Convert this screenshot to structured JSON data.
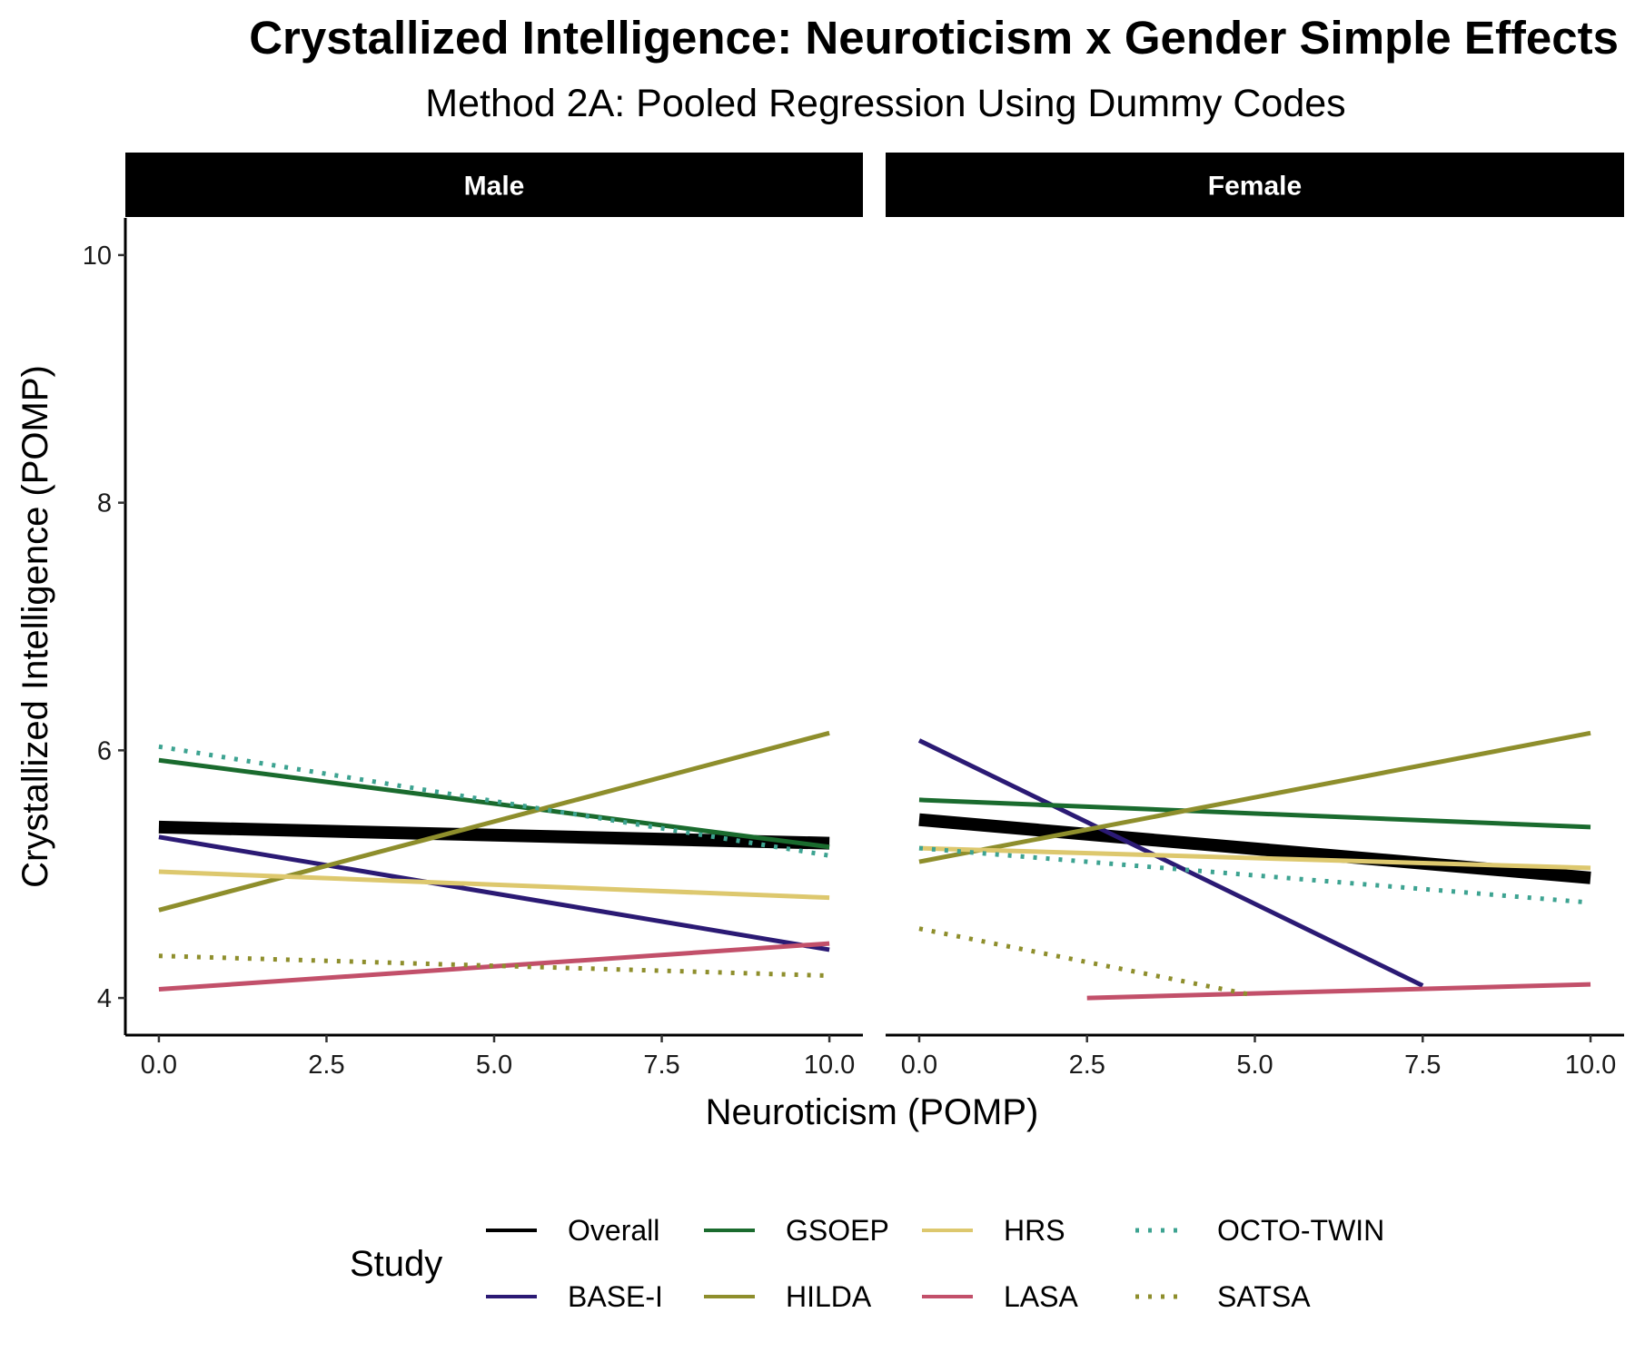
{
  "chart_data": {
    "type": "line",
    "title": "Crystallized Intelligence: Neuroticism x Gender Simple Effects",
    "subtitle": "Method 2A: Pooled Regression Using Dummy Codes",
    "xlabel": "Neuroticism (POMP)",
    "ylabel": "Crystallized Intelligence (POMP)",
    "xlim": [
      -0.5,
      10.5
    ],
    "ylim": [
      3.7,
      10.3
    ],
    "x_ticks": [
      "0.0",
      "2.5",
      "5.0",
      "7.5",
      "10.0"
    ],
    "y_ticks": [
      "4",
      "6",
      "8",
      "10"
    ],
    "grid": false,
    "legend_position": "bottom",
    "legend_title": "Study",
    "facets": [
      "Male",
      "Female"
    ],
    "series": [
      {
        "name": "Overall",
        "color": "#000000",
        "dash": "solid",
        "weight": "thick",
        "segments": {
          "Male": [
            [
              0,
              5.38
            ],
            [
              10,
              5.25
            ]
          ],
          "Female": [
            [
              0,
              5.44
            ],
            [
              10,
              4.97
            ]
          ]
        }
      },
      {
        "name": "BASE-I",
        "color": "#2b1a74",
        "dash": "solid",
        "weight": "normal",
        "segments": {
          "Male": [
            [
              0,
              5.3
            ],
            [
              10,
              4.39
            ]
          ],
          "Female": [
            [
              0,
              6.08
            ],
            [
              7.5,
              4.1
            ]
          ]
        }
      },
      {
        "name": "GSOEP",
        "color": "#1a6b2e",
        "dash": "solid",
        "weight": "normal",
        "segments": {
          "Male": [
            [
              0,
              5.92
            ],
            [
              10,
              5.22
            ]
          ],
          "Female": [
            [
              0,
              5.6
            ],
            [
              10,
              5.38
            ]
          ]
        }
      },
      {
        "name": "HILDA",
        "color": "#8e8e2c",
        "dash": "solid",
        "weight": "normal",
        "segments": {
          "Male": [
            [
              0,
              4.71
            ],
            [
              10,
              6.14
            ]
          ],
          "Female": [
            [
              0,
              5.1
            ],
            [
              10,
              6.14
            ]
          ]
        }
      },
      {
        "name": "HRS",
        "color": "#ddc86e",
        "dash": "solid",
        "weight": "normal",
        "segments": {
          "Male": [
            [
              0,
              5.02
            ],
            [
              10,
              4.81
            ]
          ],
          "Female": [
            [
              0,
              5.21
            ],
            [
              10,
              5.05
            ]
          ]
        }
      },
      {
        "name": "LASA",
        "color": "#c2506a",
        "dash": "solid",
        "weight": "normal",
        "segments": {
          "Male": [
            [
              0,
              4.07
            ],
            [
              10,
              4.44
            ]
          ],
          "Female": [
            [
              2.5,
              4.0
            ],
            [
              10,
              4.11
            ]
          ]
        }
      },
      {
        "name": "OCTO-TWIN",
        "color": "#3da391",
        "dash": "dotted",
        "weight": "normal",
        "segments": {
          "Male": [
            [
              0,
              6.03
            ],
            [
              10,
              5.15
            ]
          ],
          "Female": [
            [
              0,
              5.21
            ],
            [
              10,
              4.77
            ]
          ]
        }
      },
      {
        "name": "SATSA",
        "color": "#8e8e2c",
        "dash": "dotted",
        "weight": "normal",
        "segments": {
          "Male": [
            [
              0,
              4.34
            ],
            [
              10,
              4.18
            ]
          ],
          "Female": [
            [
              0,
              4.56
            ],
            [
              5.0,
              4.02
            ]
          ]
        }
      }
    ]
  }
}
